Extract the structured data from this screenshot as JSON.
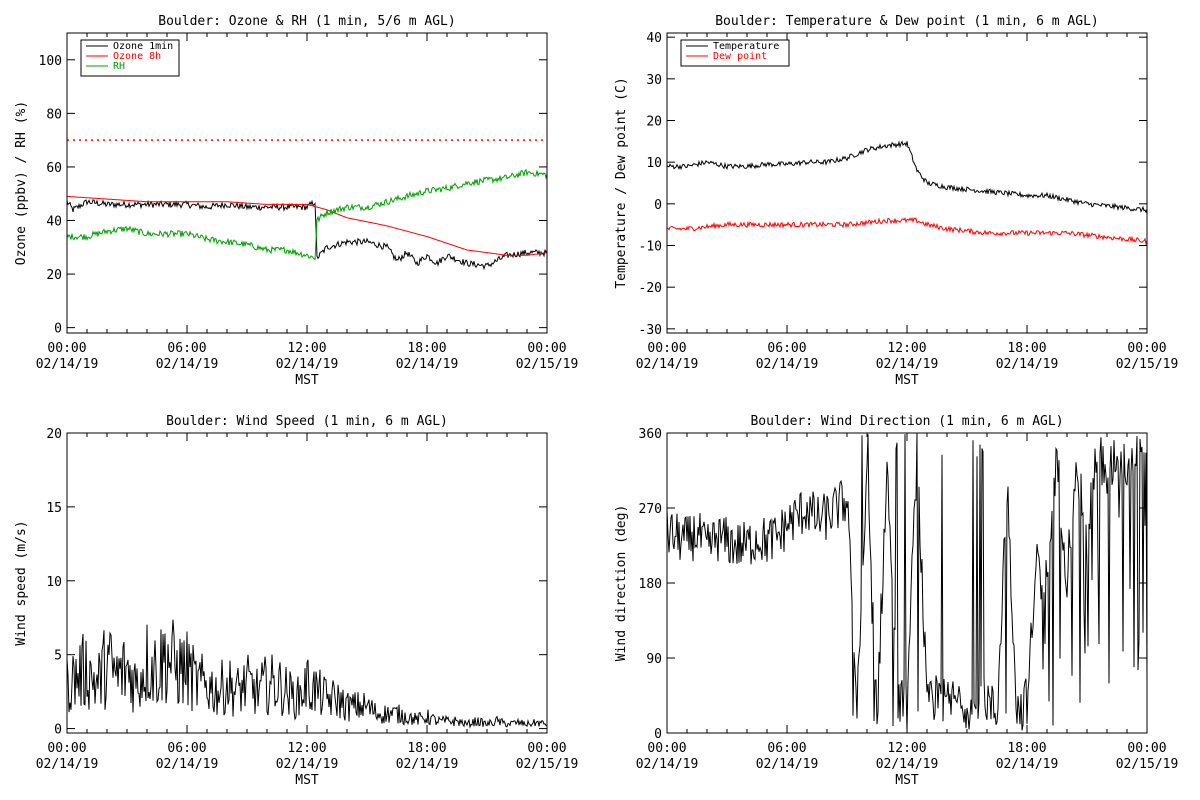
{
  "chart_data": [
    {
      "type": "line",
      "title": "Boulder: Ozone & RH (1 min, 5/6 m AGL)",
      "xlabel": "MST",
      "ylabel": "Ozone (ppbv) / RH (%)",
      "xlim": [
        0,
        24
      ],
      "ylim": [
        -2,
        110
      ],
      "yticks": [
        0,
        20,
        40,
        60,
        80,
        100
      ],
      "xticks": [
        {
          "time": "00:00",
          "date": "02/14/19"
        },
        {
          "time": "06:00",
          "date": "02/14/19"
        },
        {
          "time": "12:00",
          "date": "02/14/19"
        },
        {
          "time": "18:00",
          "date": "02/14/19"
        },
        {
          "time": "00:00",
          "date": "02/15/19"
        }
      ],
      "legend": "top-left",
      "reference_line": {
        "y": 70,
        "color": "#ff0000",
        "style": "dotted"
      },
      "series": [
        {
          "name": "Ozone 1min",
          "color": "#000000",
          "x": [
            0,
            0.3,
            1,
            2,
            3,
            4,
            5,
            6,
            7,
            8,
            9,
            10,
            11,
            12,
            12.4,
            12.5,
            13,
            14,
            15,
            16,
            16.5,
            17,
            17.5,
            18,
            18.5,
            19,
            20,
            21,
            22,
            23,
            24
          ],
          "y": [
            47,
            44,
            47,
            46,
            46,
            46,
            46,
            46,
            45,
            46,
            45,
            45,
            45,
            45,
            47,
            26,
            30,
            32,
            32,
            30,
            25,
            28,
            24,
            27,
            24,
            27,
            24,
            23,
            27,
            28,
            28
          ]
        },
        {
          "name": "Ozone 8h",
          "color": "#ff0000",
          "x": [
            0,
            2,
            4,
            6,
            8,
            10,
            12,
            13,
            14,
            16,
            18,
            20,
            22,
            23,
            24
          ],
          "y": [
            49,
            48,
            47,
            47,
            47,
            46,
            46,
            44,
            41,
            38,
            34,
            29,
            27,
            27,
            28
          ]
        },
        {
          "name": "RH",
          "color": "#00a000",
          "x": [
            0,
            1,
            2,
            3,
            4,
            5,
            6,
            7,
            8,
            9,
            10,
            11,
            12,
            12.4,
            12.5,
            12.8,
            13,
            14,
            15,
            16,
            17,
            18,
            19,
            20,
            21,
            22,
            23,
            24
          ],
          "y": [
            34,
            34,
            36,
            37,
            35,
            35,
            35,
            33,
            32,
            31,
            29,
            29,
            27,
            26,
            40,
            42,
            43,
            45,
            45,
            47,
            49,
            51,
            52,
            54,
            55,
            56,
            58,
            57
          ]
        }
      ]
    },
    {
      "type": "line",
      "title": "Boulder: Temperature & Dew point (1 min, 6 m AGL)",
      "xlabel": "MST",
      "ylabel": "Temperature / Dew point (C)",
      "xlim": [
        0,
        24
      ],
      "ylim": [
        -31,
        41
      ],
      "yticks": [
        -30,
        -20,
        -10,
        0,
        10,
        20,
        30,
        40
      ],
      "xticks": [
        {
          "time": "00:00",
          "date": "02/14/19"
        },
        {
          "time": "06:00",
          "date": "02/14/19"
        },
        {
          "time": "12:00",
          "date": "02/14/19"
        },
        {
          "time": "18:00",
          "date": "02/14/19"
        },
        {
          "time": "00:00",
          "date": "02/15/19"
        }
      ],
      "legend": "top-left",
      "series": [
        {
          "name": "Temperature",
          "color": "#000000",
          "x": [
            0,
            1,
            2,
            3,
            4,
            5,
            6,
            7,
            8,
            9,
            10,
            11,
            12,
            12.5,
            13,
            14,
            15,
            16,
            17,
            18,
            19,
            20,
            21,
            22,
            23,
            24
          ],
          "y": [
            9,
            9,
            10,
            9,
            9,
            9.5,
            9.5,
            10,
            10,
            11,
            13,
            14,
            14.5,
            8,
            5,
            4,
            3.5,
            3,
            2.5,
            2,
            2,
            1,
            0,
            -0.5,
            -1,
            -1.5
          ]
        },
        {
          "name": "Dew point",
          "color": "#ff0000",
          "x": [
            0,
            1,
            2,
            3,
            4,
            5,
            6,
            7,
            8,
            9,
            10,
            11,
            12,
            12.5,
            13,
            14,
            15,
            16,
            17,
            18,
            19,
            20,
            21,
            22,
            23,
            24
          ],
          "y": [
            -6,
            -6,
            -5.5,
            -5,
            -5,
            -5,
            -5,
            -5,
            -5,
            -5,
            -4.5,
            -4,
            -4,
            -4,
            -5,
            -6,
            -6.5,
            -7,
            -7,
            -7,
            -7,
            -7,
            -7.5,
            -8,
            -8.5,
            -9
          ]
        }
      ]
    },
    {
      "type": "line",
      "title": "Boulder: Wind Speed (1 min, 6 m AGL)",
      "xlabel": "MST",
      "ylabel": "Wind speed (m/s)",
      "xlim": [
        0,
        24
      ],
      "ylim": [
        -0.3,
        20
      ],
      "yticks": [
        0,
        5,
        10,
        15,
        20
      ],
      "xticks": [
        {
          "time": "00:00",
          "date": "02/14/19"
        },
        {
          "time": "06:00",
          "date": "02/14/19"
        },
        {
          "time": "12:00",
          "date": "02/14/19"
        },
        {
          "time": "18:00",
          "date": "02/14/19"
        },
        {
          "time": "00:00",
          "date": "02/15/19"
        }
      ],
      "series": [
        {
          "name": "",
          "color": "#000000",
          "x": [
            0,
            0.5,
            1,
            1.5,
            2,
            2.5,
            3,
            3.5,
            4,
            4.5,
            5,
            5.5,
            6,
            6.5,
            7,
            7.5,
            8,
            8.5,
            9,
            9.5,
            10,
            10.5,
            11,
            11.5,
            12,
            12.5,
            13,
            13.5,
            14,
            14.5,
            15,
            15.5,
            16,
            16.5,
            17,
            17.5,
            18,
            18.5,
            19,
            19.5,
            20,
            20.5,
            21,
            21.5,
            22,
            22.5,
            23,
            23.5,
            24
          ],
          "y": [
            3,
            3.5,
            4,
            3,
            4.5,
            3.5,
            4,
            3,
            4.5,
            4,
            5,
            4,
            4,
            3,
            3,
            2.5,
            3,
            2.5,
            3,
            2.5,
            3,
            3,
            2.5,
            2,
            3,
            2.5,
            2,
            2,
            1.5,
            1.5,
            1.5,
            1,
            1,
            1,
            0.8,
            0.6,
            0.8,
            0.5,
            0.5,
            0.5,
            0.3,
            0.5,
            0.3,
            0.5,
            0.3,
            0.4,
            0.3,
            0.4,
            0.3
          ]
        }
      ]
    },
    {
      "type": "line",
      "title": "Boulder: Wind Direction (1 min, 6 m AGL)",
      "xlabel": "MST",
      "ylabel": "Wind direction (deg)",
      "xlim": [
        0,
        24
      ],
      "ylim": [
        0,
        360
      ],
      "yticks": [
        0,
        90,
        180,
        270,
        360
      ],
      "xticks": [
        {
          "time": "00:00",
          "date": "02/14/19"
        },
        {
          "time": "06:00",
          "date": "02/14/19"
        },
        {
          "time": "12:00",
          "date": "02/14/19"
        },
        {
          "time": "18:00",
          "date": "02/14/19"
        },
        {
          "time": "00:00",
          "date": "02/15/19"
        }
      ],
      "series": [
        {
          "name": "",
          "color": "#000000",
          "x": [
            0,
            0.5,
            1,
            1.5,
            2,
            2.5,
            3,
            3.5,
            4,
            4.5,
            5,
            5.5,
            6,
            6.5,
            7,
            7.5,
            8,
            8.5,
            9,
            9.5,
            10,
            10.5,
            11,
            11.5,
            12,
            12.5,
            13,
            13.5,
            14,
            14.5,
            15,
            15.5,
            16,
            16.5,
            17,
            17.5,
            18,
            18.5,
            19,
            19.5,
            20,
            20.5,
            21,
            21.5,
            22,
            22.5,
            23,
            23.5,
            24
          ],
          "y": [
            240,
            235,
            230,
            240,
            220,
            235,
            230,
            225,
            225,
            235,
            230,
            235,
            250,
            260,
            270,
            255,
            260,
            270,
            280,
            30,
            300,
            20,
            320,
            40,
            30,
            340,
            30,
            40,
            35,
            40,
            35,
            30,
            40,
            20,
            300,
            25,
            40,
            200,
            180,
            330,
            190,
            340,
            220,
            350,
            300,
            340,
            320,
            350,
            340
          ]
        }
      ]
    }
  ]
}
